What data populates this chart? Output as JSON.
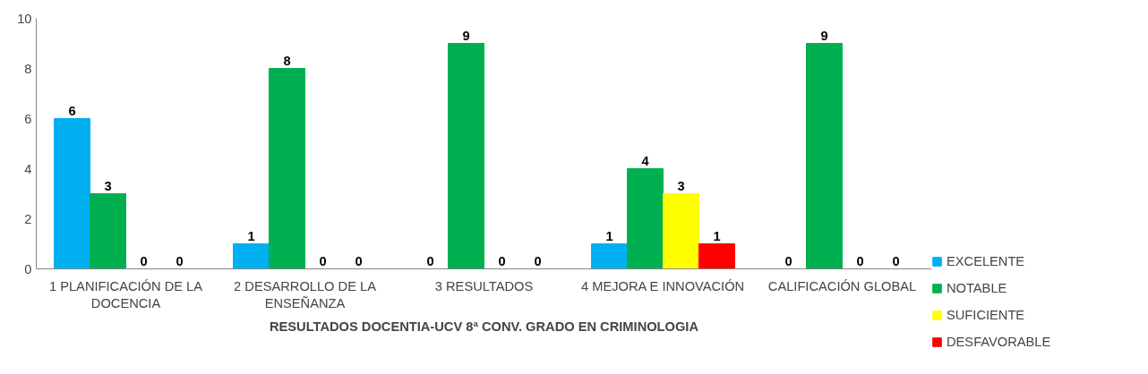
{
  "chart_data": {
    "type": "bar",
    "title": "RESULTADOS DOCENTIA-UCV 8ª CONV. GRADO EN CRIMINOLOGIA",
    "categories": [
      "1 PLANIFICACIÓN DE LA DOCENCIA",
      "2 DESARROLLO DE LA ENSEÑANZA",
      "3 RESULTADOS",
      "4 MEJORA E INNOVACIÓN",
      "CALIFICACIÓN GLOBAL"
    ],
    "series": [
      {
        "name": "EXCELENTE",
        "color": "#00b0f0",
        "values": [
          6,
          1,
          0,
          1,
          0
        ]
      },
      {
        "name": "NOTABLE",
        "color": "#00b050",
        "values": [
          3,
          8,
          9,
          4,
          9
        ]
      },
      {
        "name": "SUFICIENTE",
        "color": "#ffff00",
        "values": [
          0,
          0,
          0,
          3,
          0
        ]
      },
      {
        "name": "DESFAVORABLE",
        "color": "#ff0000",
        "values": [
          0,
          0,
          0,
          1,
          0
        ]
      }
    ],
    "ylim": [
      0,
      10
    ],
    "yticks": [
      0,
      2,
      4,
      6,
      8,
      10
    ],
    "grid": false,
    "legend": "right",
    "data_labels": true
  }
}
